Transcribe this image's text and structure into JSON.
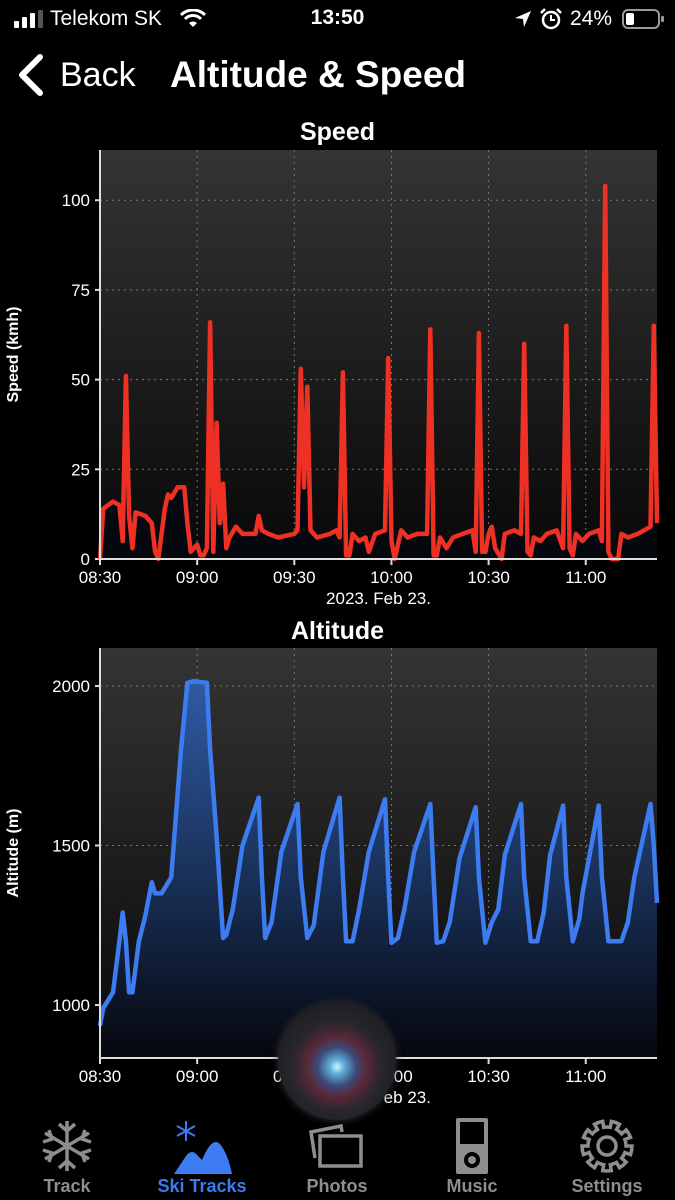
{
  "status_bar": {
    "carrier": "Telekom SK",
    "time": "13:50",
    "battery": "24%",
    "icons": [
      "signal-icon",
      "wifi-icon",
      "location-icon",
      "alarm-icon",
      "battery-icon"
    ]
  },
  "nav": {
    "back_label": "Back",
    "title": "Altitude & Speed"
  },
  "colors": {
    "speed_line": "#ee3124",
    "altitude_line": "#3d7cf0",
    "tab_active": "#3d7cf0",
    "tab_inactive": "#8e8e8e"
  },
  "chart_data": [
    {
      "type": "line",
      "title": "Speed",
      "ylabel": "Speed (kmh)",
      "xlabel": "2023. Feb 23.",
      "x_ticks": [
        "08:30",
        "09:00",
        "09:30",
        "10:00",
        "10:30",
        "11:00"
      ],
      "y_ticks": [
        0,
        25,
        50,
        75,
        100
      ],
      "xlim": [
        "08:30",
        "11:22"
      ],
      "ylim": [
        0,
        114
      ],
      "grid": true,
      "series": [
        {
          "color": "#ee3124",
          "points": [
            [
              "08:30",
              0
            ],
            [
              "08:31",
              14
            ],
            [
              "08:34",
              16
            ],
            [
              "08:36",
              15
            ],
            [
              "08:37",
              5
            ],
            [
              "08:38",
              51
            ],
            [
              "08:39",
              12
            ],
            [
              "08:40",
              3
            ],
            [
              "08:41",
              13
            ],
            [
              "08:44",
              12
            ],
            [
              "08:46",
              10
            ],
            [
              "08:47",
              2
            ],
            [
              "08:48",
              0
            ],
            [
              "08:50",
              14
            ],
            [
              "08:51",
              18
            ],
            [
              "08:52",
              17
            ],
            [
              "08:54",
              20
            ],
            [
              "08:56",
              20
            ],
            [
              "08:57",
              10
            ],
            [
              "08:58",
              2
            ],
            [
              "09:00",
              4
            ],
            [
              "09:01",
              1
            ],
            [
              "09:02",
              1
            ],
            [
              "09:03",
              3
            ],
            [
              "09:04",
              66
            ],
            [
              "09:05",
              2
            ],
            [
              "09:06",
              38
            ],
            [
              "09:07",
              10
            ],
            [
              "09:08",
              21
            ],
            [
              "09:09",
              3
            ],
            [
              "09:10",
              6
            ],
            [
              "09:12",
              9
            ],
            [
              "09:14",
              7
            ],
            [
              "09:18",
              7
            ],
            [
              "09:19",
              12
            ],
            [
              "09:20",
              8
            ],
            [
              "09:22",
              7
            ],
            [
              "09:25",
              6
            ],
            [
              "09:30",
              7
            ],
            [
              "09:31",
              8
            ],
            [
              "09:32",
              53
            ],
            [
              "09:33",
              20
            ],
            [
              "09:34",
              48
            ],
            [
              "09:35",
              8
            ],
            [
              "09:37",
              6
            ],
            [
              "09:41",
              7
            ],
            [
              "09:43",
              8
            ],
            [
              "09:44",
              6
            ],
            [
              "09:45",
              52
            ],
            [
              "09:46",
              1
            ],
            [
              "09:47",
              1
            ],
            [
              "09:48",
              7
            ],
            [
              "09:50",
              5
            ],
            [
              "09:52",
              6
            ],
            [
              "09:53",
              2
            ],
            [
              "09:55",
              7
            ],
            [
              "09:58",
              8
            ],
            [
              "09:59",
              56
            ],
            [
              "10:00",
              5
            ],
            [
              "10:01",
              0
            ],
            [
              "10:03",
              8
            ],
            [
              "10:05",
              6
            ],
            [
              "10:08",
              7
            ],
            [
              "10:11",
              7
            ],
            [
              "10:12",
              64
            ],
            [
              "10:13",
              1
            ],
            [
              "10:14",
              1
            ],
            [
              "10:15",
              6
            ],
            [
              "10:17",
              3
            ],
            [
              "10:19",
              6
            ],
            [
              "10:22",
              7
            ],
            [
              "10:25",
              8
            ],
            [
              "10:26",
              2
            ],
            [
              "10:27",
              63
            ],
            [
              "10:28",
              2
            ],
            [
              "10:29",
              2
            ],
            [
              "10:30",
              7
            ],
            [
              "10:31",
              9
            ],
            [
              "10:32",
              3
            ],
            [
              "10:34",
              0
            ],
            [
              "10:35",
              7
            ],
            [
              "10:38",
              8
            ],
            [
              "10:40",
              7
            ],
            [
              "10:41",
              60
            ],
            [
              "10:42",
              2
            ],
            [
              "10:43",
              1
            ],
            [
              "10:44",
              6
            ],
            [
              "10:46",
              5
            ],
            [
              "10:48",
              7
            ],
            [
              "10:51",
              8
            ],
            [
              "10:53",
              3
            ],
            [
              "10:54",
              65
            ],
            [
              "10:55",
              3
            ],
            [
              "10:56",
              1
            ],
            [
              "10:57",
              7
            ],
            [
              "10:59",
              5
            ],
            [
              "11:01",
              7
            ],
            [
              "11:04",
              8
            ],
            [
              "11:05",
              5
            ],
            [
              "11:06",
              104
            ],
            [
              "11:07",
              2
            ],
            [
              "11:08",
              0
            ],
            [
              "11:10",
              0
            ],
            [
              "11:11",
              7
            ],
            [
              "11:13",
              6
            ],
            [
              "11:16",
              7
            ],
            [
              "11:18",
              8
            ],
            [
              "11:20",
              9
            ],
            [
              "11:21",
              65
            ],
            [
              "11:22",
              10
            ]
          ]
        }
      ]
    },
    {
      "type": "area",
      "title": "Altitude",
      "ylabel": "Altitude (m)",
      "xlabel": "2023. Feb 23.",
      "x_ticks": [
        "08:30",
        "09:00",
        "09:30",
        "10:00",
        "10:30",
        "11:00"
      ],
      "y_ticks": [
        1000,
        1500,
        2000
      ],
      "xlim": [
        "08:30",
        "11:22"
      ],
      "ylim": [
        834,
        2119
      ],
      "grid": true,
      "series": [
        {
          "color": "#3d7cf0",
          "points": [
            [
              "08:30",
              935
            ],
            [
              "08:31",
              990
            ],
            [
              "08:34",
              1040
            ],
            [
              "08:36",
              1200
            ],
            [
              "08:37",
              1290
            ],
            [
              "08:38",
              1200
            ],
            [
              "08:39",
              1040
            ],
            [
              "08:40",
              1040
            ],
            [
              "08:42",
              1200
            ],
            [
              "08:44",
              1280
            ],
            [
              "08:46",
              1385
            ],
            [
              "08:47",
              1350
            ],
            [
              "08:49",
              1350
            ],
            [
              "08:52",
              1400
            ],
            [
              "08:55",
              1800
            ],
            [
              "08:57",
              2010
            ],
            [
              "08:59",
              2015
            ],
            [
              "09:03",
              2010
            ],
            [
              "09:04",
              1800
            ],
            [
              "09:06",
              1530
            ],
            [
              "09:08",
              1210
            ],
            [
              "09:09",
              1220
            ],
            [
              "09:11",
              1300
            ],
            [
              "09:14",
              1500
            ],
            [
              "09:19",
              1650
            ],
            [
              "09:20",
              1400
            ],
            [
              "09:21",
              1210
            ],
            [
              "09:23",
              1260
            ],
            [
              "09:26",
              1480
            ],
            [
              "09:31",
              1630
            ],
            [
              "09:32",
              1400
            ],
            [
              "09:34",
              1210
            ],
            [
              "09:36",
              1250
            ],
            [
              "09:39",
              1480
            ],
            [
              "09:44",
              1650
            ],
            [
              "09:45",
              1400
            ],
            [
              "09:46",
              1200
            ],
            [
              "09:48",
              1200
            ],
            [
              "09:50",
              1300
            ],
            [
              "09:53",
              1480
            ],
            [
              "09:58",
              1645
            ],
            [
              "09:59",
              1400
            ],
            [
              "10:00",
              1195
            ],
            [
              "10:02",
              1210
            ],
            [
              "10:04",
              1300
            ],
            [
              "10:07",
              1480
            ],
            [
              "10:12",
              1630
            ],
            [
              "10:13",
              1400
            ],
            [
              "10:14",
              1195
            ],
            [
              "10:16",
              1200
            ],
            [
              "10:18",
              1260
            ],
            [
              "10:21",
              1460
            ],
            [
              "10:26",
              1620
            ],
            [
              "10:27",
              1400
            ],
            [
              "10:29",
              1195
            ],
            [
              "10:31",
              1260
            ],
            [
              "10:33",
              1300
            ],
            [
              "10:35",
              1470
            ],
            [
              "10:40",
              1630
            ],
            [
              "10:41",
              1400
            ],
            [
              "10:43",
              1200
            ],
            [
              "10:45",
              1200
            ],
            [
              "10:47",
              1290
            ],
            [
              "10:49",
              1470
            ],
            [
              "10:53",
              1625
            ],
            [
              "10:54",
              1400
            ],
            [
              "10:56",
              1200
            ],
            [
              "10:58",
              1270
            ],
            [
              "10:59",
              1350
            ],
            [
              "11:04",
              1625
            ],
            [
              "11:05",
              1400
            ],
            [
              "11:07",
              1200
            ],
            [
              "11:11",
              1200
            ],
            [
              "11:13",
              1260
            ],
            [
              "11:15",
              1400
            ],
            [
              "11:20",
              1630
            ],
            [
              "11:21",
              1500
            ],
            [
              "11:22",
              1320
            ]
          ]
        }
      ]
    }
  ],
  "tabs": [
    {
      "label": "Track",
      "icon": "snowflake-icon"
    },
    {
      "label": "Ski Tracks",
      "icon": "ski-mountain-icon",
      "active": true
    },
    {
      "label": "Photos",
      "icon": "photos-icon"
    },
    {
      "label": "Music",
      "icon": "music-player-icon"
    },
    {
      "label": "Settings",
      "icon": "gear-icon"
    }
  ]
}
